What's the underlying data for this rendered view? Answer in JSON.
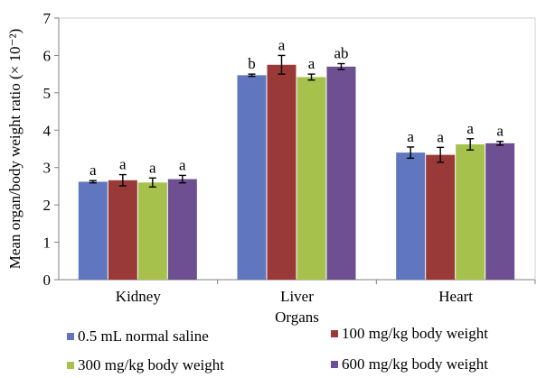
{
  "chart_data": {
    "type": "bar",
    "xlabel": "Organs",
    "ylabel": "Mean organ/body weight ratio (× 10⁻²)",
    "ylim": [
      0,
      7
    ],
    "yticks": [
      "0",
      "1",
      "2",
      "3",
      "4",
      "5",
      "6",
      "7"
    ],
    "categories": [
      "Kidney",
      "Liver",
      "Heart"
    ],
    "series": [
      {
        "name": "0.5 mL normal saline",
        "color": "#6076BF",
        "values": [
          2.62,
          5.47,
          3.4
        ],
        "errors": [
          0.03,
          0.03,
          0.15
        ],
        "labels": [
          "a",
          "b",
          "a"
        ]
      },
      {
        "name": "100 mg/kg body weight",
        "color": "#9A3A38",
        "values": [
          2.66,
          5.75,
          3.34
        ],
        "errors": [
          0.15,
          0.25,
          0.2
        ],
        "labels": [
          "a",
          "a",
          "a"
        ]
      },
      {
        "name": "300 mg/kg body weight",
        "color": "#A6C24C",
        "values": [
          2.6,
          5.42,
          3.62
        ],
        "errors": [
          0.12,
          0.08,
          0.15
        ],
        "labels": [
          "a",
          "a",
          "a"
        ]
      },
      {
        "name": "600 mg/kg body weight",
        "color": "#6E4F92",
        "values": [
          2.69,
          5.7,
          3.65
        ],
        "errors": [
          0.1,
          0.08,
          0.05
        ],
        "labels": [
          "a",
          "ab",
          "a"
        ]
      }
    ],
    "grid": false,
    "legend_position": "bottom"
  }
}
